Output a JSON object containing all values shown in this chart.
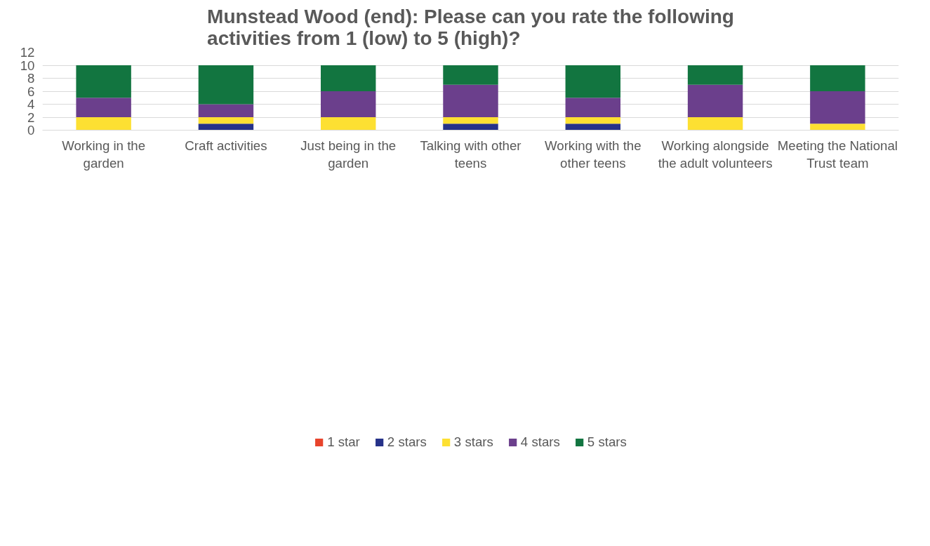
{
  "chart_data": {
    "type": "bar",
    "stacked": true,
    "title": "Munstead Wood (end): Please can you rate the following activities from 1 (low) to 5 (high)?",
    "categories": [
      "Working in the garden",
      "Craft activities",
      "Just being in the garden",
      "Talking with other teens",
      "Working with the other teens",
      "Working alongside the adult volunteers",
      "Meeting the National Trust team"
    ],
    "series": [
      {
        "name": "1 star",
        "color": "#e8442c",
        "values": [
          0,
          0,
          0,
          0,
          0,
          0,
          0
        ]
      },
      {
        "name": "2 stars",
        "color": "#263289",
        "values": [
          0,
          1,
          0,
          1,
          1,
          0,
          0
        ]
      },
      {
        "name": "3 stars",
        "color": "#fde032",
        "values": [
          2,
          1,
          2,
          1,
          1,
          2,
          1
        ]
      },
      {
        "name": "4 stars",
        "color": "#6b3f8c",
        "values": [
          3,
          2,
          4,
          5,
          3,
          5,
          5
        ]
      },
      {
        "name": "5 stars",
        "color": "#127540",
        "values": [
          5,
          6,
          4,
          3,
          5,
          3,
          4
        ]
      }
    ],
    "ylim": [
      0,
      12
    ],
    "yticks": [
      0,
      2,
      4,
      6,
      8,
      10,
      12
    ],
    "grid": "y",
    "legend": "bottom"
  }
}
